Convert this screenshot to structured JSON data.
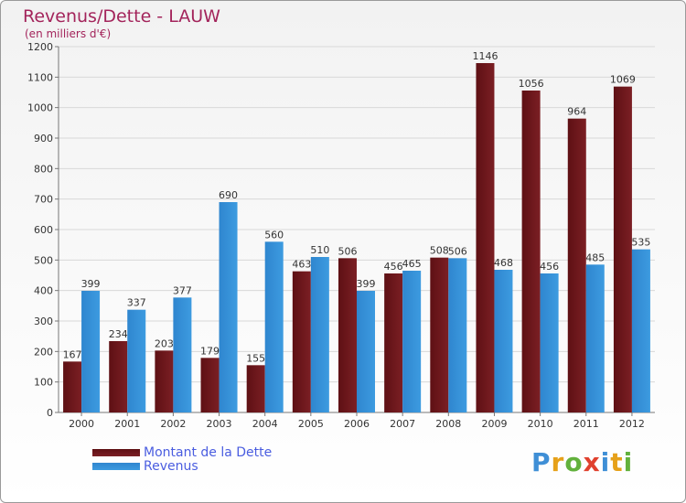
{
  "colors": {
    "debt": "#7b1f24",
    "revenue": "#3d9be0",
    "title": "#a3245b",
    "legend_text": "#4a5de0"
  },
  "chart_data": {
    "type": "bar",
    "title": "Revenus/Dette - LAUW",
    "subtitle": "(en milliers d'€)",
    "categories": [
      "2000",
      "2001",
      "2002",
      "2003",
      "2004",
      "2005",
      "2006",
      "2007",
      "2008",
      "2009",
      "2010",
      "2011",
      "2012"
    ],
    "series": [
      {
        "name": "Montant de la Dette",
        "values": [
          167,
          234,
          203,
          179,
          155,
          463,
          506,
          456,
          508,
          1146,
          1056,
          964,
          1069
        ]
      },
      {
        "name": "Revenus",
        "values": [
          399,
          337,
          377,
          690,
          560,
          510,
          399,
          465,
          506,
          468,
          456,
          485,
          535
        ]
      }
    ],
    "ylim": [
      0,
      1200
    ],
    "yticks": [
      0,
      100,
      200,
      300,
      400,
      500,
      600,
      700,
      800,
      900,
      1000,
      1100,
      1200
    ],
    "grid": true,
    "legend": "bottom-left"
  },
  "logo": {
    "letters": [
      "P",
      "r",
      "o",
      "x",
      "i",
      "t",
      "i"
    ],
    "colors": [
      "#3f8fd6",
      "#e6a11a",
      "#62b13c",
      "#e0412e",
      "#3f8fd6",
      "#e6a11a",
      "#62b13c"
    ]
  }
}
